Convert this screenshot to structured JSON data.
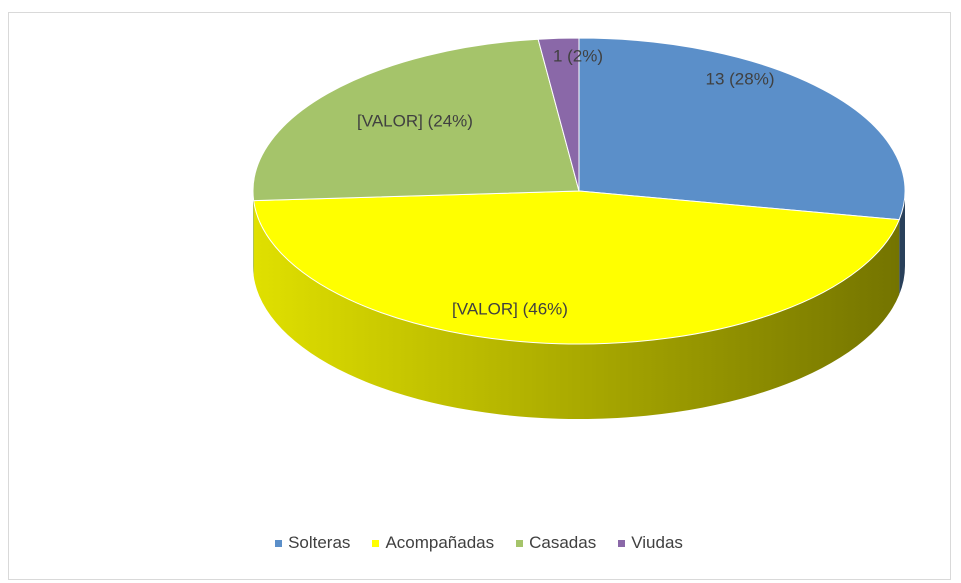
{
  "chart_data": {
    "type": "pie",
    "categories": [
      "Solteras",
      "Acompañadas",
      "Casadas",
      "Viudas"
    ],
    "values": [
      28,
      46,
      24,
      2
    ],
    "value_labels": [
      "13 (28%)",
      "[VALOR] (46%)",
      "[VALOR] (24%)",
      "1 (2%)"
    ],
    "colors": [
      "#5b8fc9",
      "#ffff00",
      "#a5c46a",
      "#8a68a8"
    ],
    "legend": "bottom"
  }
}
